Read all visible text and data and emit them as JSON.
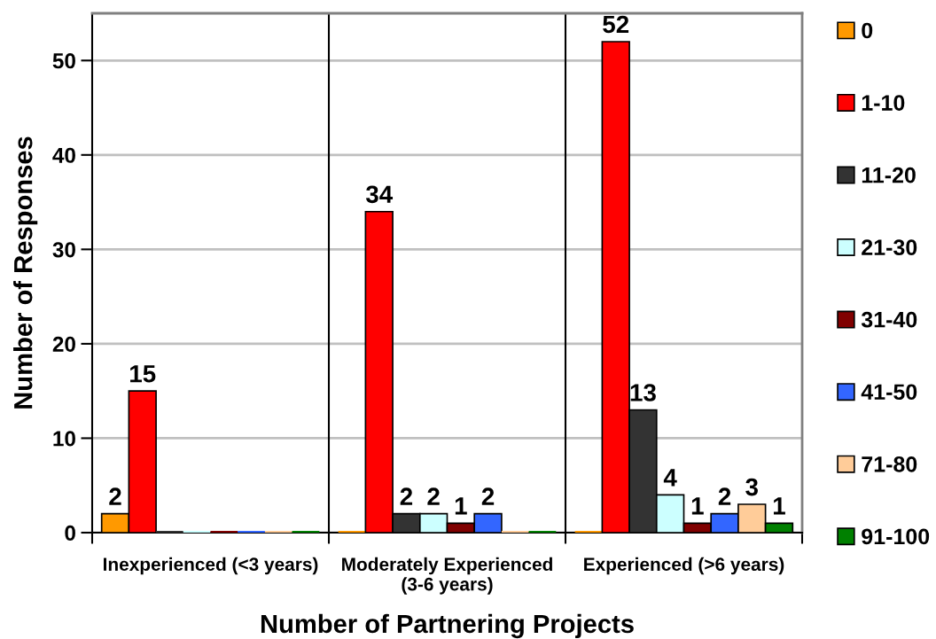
{
  "chart_data": {
    "type": "bar",
    "xlabel": "Number of Partnering Projects",
    "ylabel": "Number of Responses",
    "categories": [
      "Inexperienced (<3 years)",
      "Moderately Experienced\n(3-6 years)",
      "Experienced (>6 years)"
    ],
    "series": [
      {
        "name": "0",
        "color": "#ff9900",
        "values": [
          2,
          0,
          0
        ],
        "value_labels": [
          "2",
          null,
          null
        ]
      },
      {
        "name": "1-10",
        "color": "#ff0000",
        "values": [
          15,
          34,
          52
        ],
        "value_labels": [
          "15",
          "34",
          "52"
        ]
      },
      {
        "name": "11-20",
        "color": "#333333",
        "values": [
          0,
          2,
          13
        ],
        "value_labels": [
          null,
          "2",
          "13"
        ]
      },
      {
        "name": "21-30",
        "color": "#ccffff",
        "values": [
          0,
          2,
          4
        ],
        "value_labels": [
          null,
          "2",
          "4"
        ]
      },
      {
        "name": "31-40",
        "color": "#800000",
        "values": [
          0,
          1,
          1
        ],
        "value_labels": [
          null,
          "1",
          "1"
        ]
      },
      {
        "name": "41-50",
        "color": "#3366ff",
        "values": [
          0,
          2,
          2
        ],
        "value_labels": [
          null,
          "2",
          "2"
        ]
      },
      {
        "name": "71-80",
        "color": "#ffcc99",
        "values": [
          0,
          0,
          3
        ],
        "value_labels": [
          null,
          null,
          "3"
        ]
      },
      {
        "name": "91-100",
        "color": "#008000",
        "values": [
          0,
          0,
          1
        ],
        "value_labels": [
          null,
          null,
          "1"
        ]
      }
    ],
    "ylim": [
      0,
      55
    ],
    "yticks": [
      0,
      10,
      20,
      30,
      40,
      50
    ],
    "grid": true,
    "legend": "right"
  }
}
